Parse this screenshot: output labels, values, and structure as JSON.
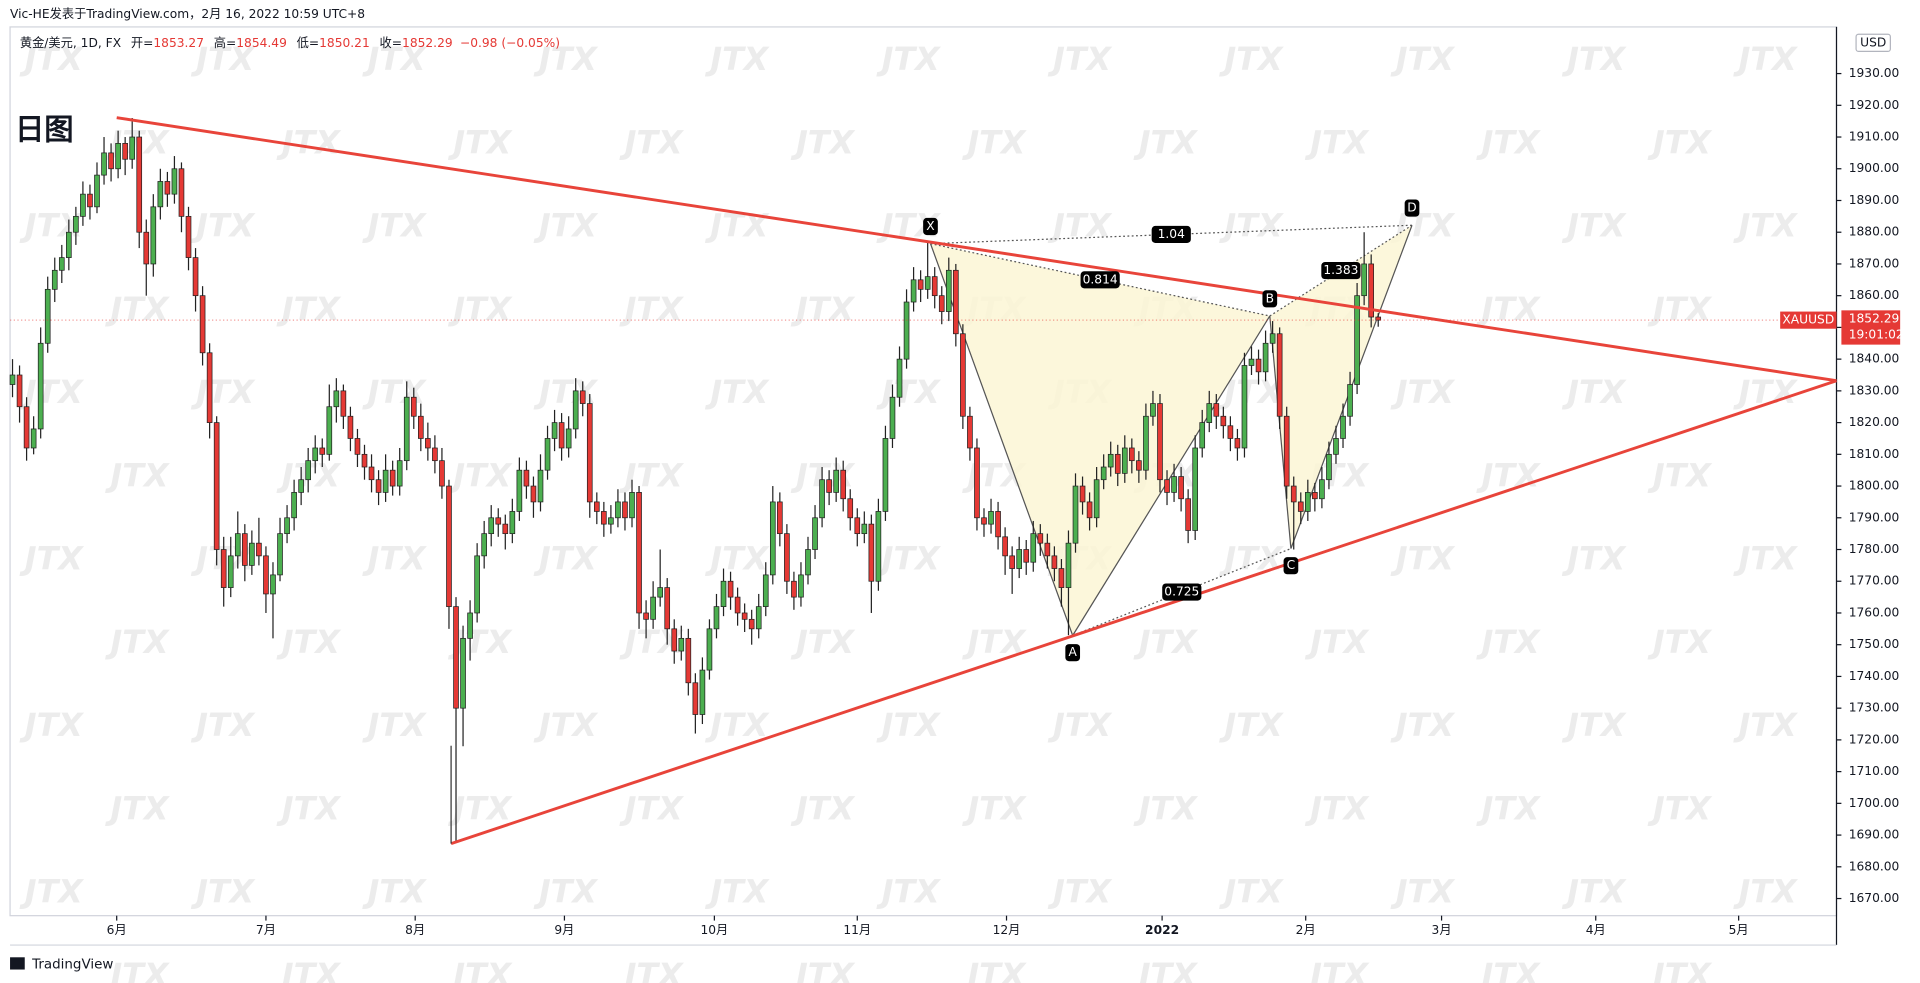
{
  "chart_data": {
    "type": "candlestick",
    "header": "Vic-HE发表于TradingView.com，2月 16, 2022 10:59 UTC+8",
    "symbol": "黄金/美元, 1D, FX",
    "ohlc_labels": [
      "开=",
      "高=",
      "低=",
      "收="
    ],
    "change": "−0.98 (−0.05%)",
    "title": "日图",
    "ticker": "XAUUSD",
    "countdown": "19:01:02",
    "currency": "USD",
    "brand": "TradingView",
    "watermark": "JTX",
    "up_color": "#4caf50",
    "down_color": "#e53935",
    "line_color": "#e8443a",
    "candles": [
      [
        1832,
        1840,
        1828,
        1835
      ],
      [
        1835,
        1838,
        1820,
        1825
      ],
      [
        1825,
        1828,
        1808,
        1812
      ],
      [
        1812,
        1822,
        1810,
        1818
      ],
      [
        1818,
        1850,
        1815,
        1845
      ],
      [
        1845,
        1866,
        1842,
        1862
      ],
      [
        1862,
        1872,
        1858,
        1868
      ],
      [
        1868,
        1876,
        1864,
        1872
      ],
      [
        1872,
        1884,
        1868,
        1880
      ],
      [
        1880,
        1888,
        1876,
        1885
      ],
      [
        1885,
        1896,
        1882,
        1892
      ],
      [
        1892,
        1895,
        1884,
        1888
      ],
      [
        1888,
        1902,
        1886,
        1898
      ],
      [
        1898,
        1910,
        1895,
        1905
      ],
      [
        1905,
        1908,
        1896,
        1900
      ],
      [
        1900,
        1912,
        1897,
        1908
      ],
      [
        1908,
        1910,
        1898,
        1903
      ],
      [
        1903,
        1916,
        1900,
        1910
      ],
      [
        1910,
        1912,
        1875,
        1880
      ],
      [
        1880,
        1884,
        1860,
        1870
      ],
      [
        1870,
        1892,
        1866,
        1888
      ],
      [
        1888,
        1900,
        1884,
        1896
      ],
      [
        1896,
        1899,
        1888,
        1892
      ],
      [
        1892,
        1904,
        1889,
        1900
      ],
      [
        1900,
        1902,
        1880,
        1885
      ],
      [
        1885,
        1888,
        1868,
        1872
      ],
      [
        1872,
        1875,
        1855,
        1860
      ],
      [
        1860,
        1863,
        1838,
        1842
      ],
      [
        1842,
        1845,
        1815,
        1820
      ],
      [
        1820,
        1822,
        1775,
        1780
      ],
      [
        1780,
        1784,
        1762,
        1768
      ],
      [
        1768,
        1784,
        1765,
        1778
      ],
      [
        1778,
        1792,
        1774,
        1785
      ],
      [
        1785,
        1788,
        1770,
        1775
      ],
      [
        1775,
        1786,
        1772,
        1782
      ],
      [
        1782,
        1790,
        1775,
        1778
      ],
      [
        1778,
        1781,
        1760,
        1766
      ],
      [
        1766,
        1776,
        1752,
        1772
      ],
      [
        1772,
        1790,
        1770,
        1785
      ],
      [
        1785,
        1794,
        1782,
        1790
      ],
      [
        1790,
        1802,
        1786,
        1798
      ],
      [
        1798,
        1806,
        1794,
        1802
      ],
      [
        1802,
        1812,
        1798,
        1808
      ],
      [
        1808,
        1816,
        1804,
        1812
      ],
      [
        1812,
        1815,
        1806,
        1810
      ],
      [
        1810,
        1832,
        1808,
        1825
      ],
      [
        1825,
        1834,
        1820,
        1830
      ],
      [
        1830,
        1832,
        1818,
        1822
      ],
      [
        1822,
        1825,
        1811,
        1815
      ],
      [
        1815,
        1818,
        1806,
        1810
      ],
      [
        1810,
        1813,
        1802,
        1806
      ],
      [
        1806,
        1810,
        1798,
        1802
      ],
      [
        1802,
        1805,
        1794,
        1798
      ],
      [
        1798,
        1810,
        1795,
        1805
      ],
      [
        1805,
        1808,
        1797,
        1800
      ],
      [
        1800,
        1812,
        1797,
        1808
      ],
      [
        1808,
        1833,
        1805,
        1828
      ],
      [
        1828,
        1831,
        1818,
        1822
      ],
      [
        1822,
        1826,
        1811,
        1815
      ],
      [
        1815,
        1820,
        1808,
        1812
      ],
      [
        1812,
        1816,
        1804,
        1808
      ],
      [
        1808,
        1812,
        1796,
        1800
      ],
      [
        1800,
        1802,
        1755,
        1762
      ],
      [
        1762,
        1765,
        1688,
        1730
      ],
      [
        1730,
        1756,
        1718,
        1752
      ],
      [
        1752,
        1764,
        1745,
        1760
      ],
      [
        1760,
        1782,
        1757,
        1778
      ],
      [
        1778,
        1789,
        1774,
        1785
      ],
      [
        1785,
        1794,
        1781,
        1790
      ],
      [
        1790,
        1793,
        1784,
        1788
      ],
      [
        1788,
        1791,
        1780,
        1785
      ],
      [
        1785,
        1796,
        1782,
        1792
      ],
      [
        1792,
        1809,
        1789,
        1805
      ],
      [
        1805,
        1808,
        1796,
        1800
      ],
      [
        1800,
        1803,
        1790,
        1795
      ],
      [
        1795,
        1810,
        1792,
        1805
      ],
      [
        1805,
        1819,
        1802,
        1815
      ],
      [
        1815,
        1824,
        1811,
        1820
      ],
      [
        1820,
        1823,
        1808,
        1812
      ],
      [
        1812,
        1822,
        1809,
        1818
      ],
      [
        1818,
        1834,
        1815,
        1830
      ],
      [
        1830,
        1833,
        1822,
        1826
      ],
      [
        1826,
        1829,
        1790,
        1795
      ],
      [
        1795,
        1798,
        1788,
        1792
      ],
      [
        1792,
        1795,
        1784,
        1788
      ],
      [
        1788,
        1794,
        1785,
        1790
      ],
      [
        1790,
        1799,
        1787,
        1795
      ],
      [
        1795,
        1798,
        1786,
        1790
      ],
      [
        1790,
        1802,
        1787,
        1798
      ],
      [
        1798,
        1800,
        1755,
        1760
      ],
      [
        1760,
        1764,
        1752,
        1758
      ],
      [
        1758,
        1770,
        1755,
        1765
      ],
      [
        1765,
        1780,
        1762,
        1768
      ],
      [
        1768,
        1771,
        1750,
        1755
      ],
      [
        1755,
        1758,
        1744,
        1748
      ],
      [
        1748,
        1756,
        1745,
        1752
      ],
      [
        1752,
        1755,
        1734,
        1738
      ],
      [
        1738,
        1741,
        1722,
        1728
      ],
      [
        1728,
        1746,
        1725,
        1742
      ],
      [
        1742,
        1758,
        1739,
        1755
      ],
      [
        1755,
        1766,
        1752,
        1762
      ],
      [
        1762,
        1774,
        1759,
        1770
      ],
      [
        1770,
        1773,
        1761,
        1765
      ],
      [
        1765,
        1768,
        1756,
        1760
      ],
      [
        1760,
        1763,
        1754,
        1758
      ],
      [
        1758,
        1761,
        1750,
        1755
      ],
      [
        1755,
        1766,
        1752,
        1762
      ],
      [
        1762,
        1776,
        1759,
        1772
      ],
      [
        1772,
        1800,
        1769,
        1795
      ],
      [
        1795,
        1798,
        1781,
        1785
      ],
      [
        1785,
        1788,
        1766,
        1770
      ],
      [
        1770,
        1773,
        1761,
        1765
      ],
      [
        1765,
        1776,
        1762,
        1772
      ],
      [
        1772,
        1784,
        1769,
        1780
      ],
      [
        1780,
        1794,
        1777,
        1790
      ],
      [
        1790,
        1806,
        1787,
        1802
      ],
      [
        1802,
        1805,
        1794,
        1798
      ],
      [
        1798,
        1809,
        1795,
        1805
      ],
      [
        1805,
        1808,
        1792,
        1796
      ],
      [
        1796,
        1799,
        1786,
        1790
      ],
      [
        1790,
        1793,
        1781,
        1785
      ],
      [
        1785,
        1792,
        1782,
        1788
      ],
      [
        1788,
        1791,
        1760,
        1770
      ],
      [
        1770,
        1796,
        1767,
        1792
      ],
      [
        1792,
        1819,
        1789,
        1815
      ],
      [
        1815,
        1832,
        1812,
        1828
      ],
      [
        1828,
        1844,
        1825,
        1840
      ],
      [
        1840,
        1862,
        1837,
        1858
      ],
      [
        1858,
        1869,
        1855,
        1865
      ],
      [
        1865,
        1868,
        1858,
        1862
      ],
      [
        1862,
        1877,
        1859,
        1866
      ],
      [
        1866,
        1869,
        1856,
        1860
      ],
      [
        1860,
        1863,
        1851,
        1855
      ],
      [
        1855,
        1872,
        1852,
        1868
      ],
      [
        1868,
        1870,
        1844,
        1848
      ],
      [
        1848,
        1851,
        1818,
        1822
      ],
      [
        1822,
        1825,
        1808,
        1812
      ],
      [
        1812,
        1815,
        1786,
        1790
      ],
      [
        1790,
        1793,
        1784,
        1788
      ],
      [
        1788,
        1796,
        1785,
        1792
      ],
      [
        1792,
        1795,
        1780,
        1784
      ],
      [
        1784,
        1787,
        1772,
        1778
      ],
      [
        1778,
        1781,
        1766,
        1774
      ],
      [
        1774,
        1784,
        1771,
        1780
      ],
      [
        1780,
        1783,
        1772,
        1776
      ],
      [
        1776,
        1789,
        1773,
        1785
      ],
      [
        1785,
        1788,
        1778,
        1782
      ],
      [
        1782,
        1785,
        1774,
        1778
      ],
      [
        1778,
        1781,
        1770,
        1774
      ],
      [
        1774,
        1777,
        1762,
        1768
      ],
      [
        1768,
        1786,
        1753,
        1782
      ],
      [
        1782,
        1804,
        1779,
        1800
      ],
      [
        1800,
        1803,
        1791,
        1795
      ],
      [
        1795,
        1798,
        1786,
        1790
      ],
      [
        1790,
        1806,
        1787,
        1802
      ],
      [
        1802,
        1810,
        1799,
        1806
      ],
      [
        1806,
        1814,
        1803,
        1810
      ],
      [
        1810,
        1813,
        1800,
        1804
      ],
      [
        1804,
        1816,
        1801,
        1812
      ],
      [
        1812,
        1815,
        1804,
        1808
      ],
      [
        1808,
        1811,
        1801,
        1805
      ],
      [
        1805,
        1826,
        1802,
        1822
      ],
      [
        1822,
        1830,
        1819,
        1826
      ],
      [
        1826,
        1829,
        1798,
        1802
      ],
      [
        1802,
        1805,
        1794,
        1798
      ],
      [
        1798,
        1807,
        1795,
        1803
      ],
      [
        1803,
        1806,
        1792,
        1796
      ],
      [
        1796,
        1799,
        1782,
        1786
      ],
      [
        1786,
        1816,
        1783,
        1812
      ],
      [
        1812,
        1824,
        1809,
        1820
      ],
      [
        1820,
        1830,
        1817,
        1826
      ],
      [
        1826,
        1829,
        1818,
        1822
      ],
      [
        1822,
        1825,
        1815,
        1819
      ],
      [
        1819,
        1822,
        1811,
        1815
      ],
      [
        1815,
        1818,
        1808,
        1812
      ],
      [
        1812,
        1842,
        1809,
        1838
      ],
      [
        1838,
        1844,
        1835,
        1840
      ],
      [
        1840,
        1843,
        1832,
        1836
      ],
      [
        1836,
        1849,
        1833,
        1845
      ],
      [
        1845,
        1852,
        1842,
        1848
      ],
      [
        1848,
        1850,
        1818,
        1822
      ],
      [
        1822,
        1825,
        1796,
        1800
      ],
      [
        1800,
        1803,
        1780,
        1795
      ],
      [
        1795,
        1798,
        1788,
        1792
      ],
      [
        1792,
        1802,
        1789,
        1798
      ],
      [
        1798,
        1801,
        1792,
        1796
      ],
      [
        1796,
        1806,
        1793,
        1802
      ],
      [
        1802,
        1814,
        1799,
        1810
      ],
      [
        1810,
        1819,
        1807,
        1815
      ],
      [
        1815,
        1826,
        1812,
        1822
      ],
      [
        1822,
        1836,
        1819,
        1832
      ],
      [
        1832,
        1864,
        1829,
        1860
      ],
      [
        1860,
        1880,
        1857,
        1870
      ],
      [
        1870,
        1873,
        1850,
        1853.27
      ],
      [
        1853.27,
        1854.49,
        1850.21,
        1852.29
      ]
    ],
    "trendlines": [
      {
        "x": [
          14.8,
          259.1
        ],
        "y": [
          1916.1,
          1833.2
        ]
      },
      {
        "x": [
          62.3,
          259.1
        ],
        "y": [
          1687.3,
          1833.2
        ]
      }
    ],
    "pattern": {
      "points": [
        {
          "label": "X",
          "x": 130.4,
          "y": 1876.4
        },
        {
          "label": "A",
          "x": 150.6,
          "y": 1752.9
        },
        {
          "label": "B",
          "x": 178.6,
          "y": 1853.6
        },
        {
          "label": "C",
          "x": 181.6,
          "y": 1780.3
        },
        {
          "label": "D",
          "x": 198.8,
          "y": 1882.2
        }
      ],
      "ratios": [
        {
          "from": "X",
          "to": "B",
          "value": 0.814
        },
        {
          "from": "X",
          "to": "D",
          "value": 1.04
        },
        {
          "from": "B",
          "to": "D",
          "value": 1.383
        },
        {
          "from": "A",
          "to": "C",
          "value": 0.725
        }
      ]
    },
    "xlim": [
      -0.35,
      259.1
    ],
    "xticks": [
      {
        "value": 14.8,
        "label": "6月"
      },
      {
        "value": 36,
        "label": "7月"
      },
      {
        "value": 57.2,
        "label": "8月"
      },
      {
        "value": 78.4,
        "label": "9月"
      },
      {
        "value": 99.7,
        "label": "10月"
      },
      {
        "value": 120,
        "label": "11月"
      },
      {
        "value": 141.2,
        "label": "12月"
      },
      {
        "value": 163.3,
        "label": "2022"
      },
      {
        "value": 183.7,
        "label": "2月"
      },
      {
        "value": 203,
        "label": "3月"
      },
      {
        "value": 224.9,
        "label": "4月"
      },
      {
        "value": 245.2,
        "label": "5月"
      }
    ],
    "ylim": [
      1664.6,
      1944.7
    ],
    "yticks": [
      {
        "value": 1670,
        "label": "1670.00"
      },
      {
        "value": 1680,
        "label": "1680.00"
      },
      {
        "value": 1690,
        "label": "1690.00"
      },
      {
        "value": 1700,
        "label": "1700.00"
      },
      {
        "value": 1710,
        "label": "1710.00"
      },
      {
        "value": 1720,
        "label": "1720.00"
      },
      {
        "value": 1730,
        "label": "1730.00"
      },
      {
        "value": 1740,
        "label": "1740.00"
      },
      {
        "value": 1750,
        "label": "1750.00"
      },
      {
        "value": 1760,
        "label": "1760.00"
      },
      {
        "value": 1770,
        "label": "1770.00"
      },
      {
        "value": 1780,
        "label": "1780.00"
      },
      {
        "value": 1790,
        "label": "1790.00"
      },
      {
        "value": 1800,
        "label": "1800.00"
      },
      {
        "value": 1810,
        "label": "1810.00"
      },
      {
        "value": 1820,
        "label": "1820.00"
      },
      {
        "value": 1830,
        "label": "1830.00"
      },
      {
        "value": 1840,
        "label": "1840.00"
      },
      {
        "value": 1850,
        "label": "1850.00"
      },
      {
        "value": 1860,
        "label": "1860.00"
      },
      {
        "value": 1870,
        "label": "1870.00"
      },
      {
        "value": 1880,
        "label": "1880.00"
      },
      {
        "value": 1890,
        "label": "1890.00"
      },
      {
        "value": 1900,
        "label": "1900.00"
      },
      {
        "value": 1910,
        "label": "1910.00"
      },
      {
        "value": 1920,
        "label": "1920.00"
      },
      {
        "value": 1930,
        "label": "1930.00"
      }
    ]
  }
}
